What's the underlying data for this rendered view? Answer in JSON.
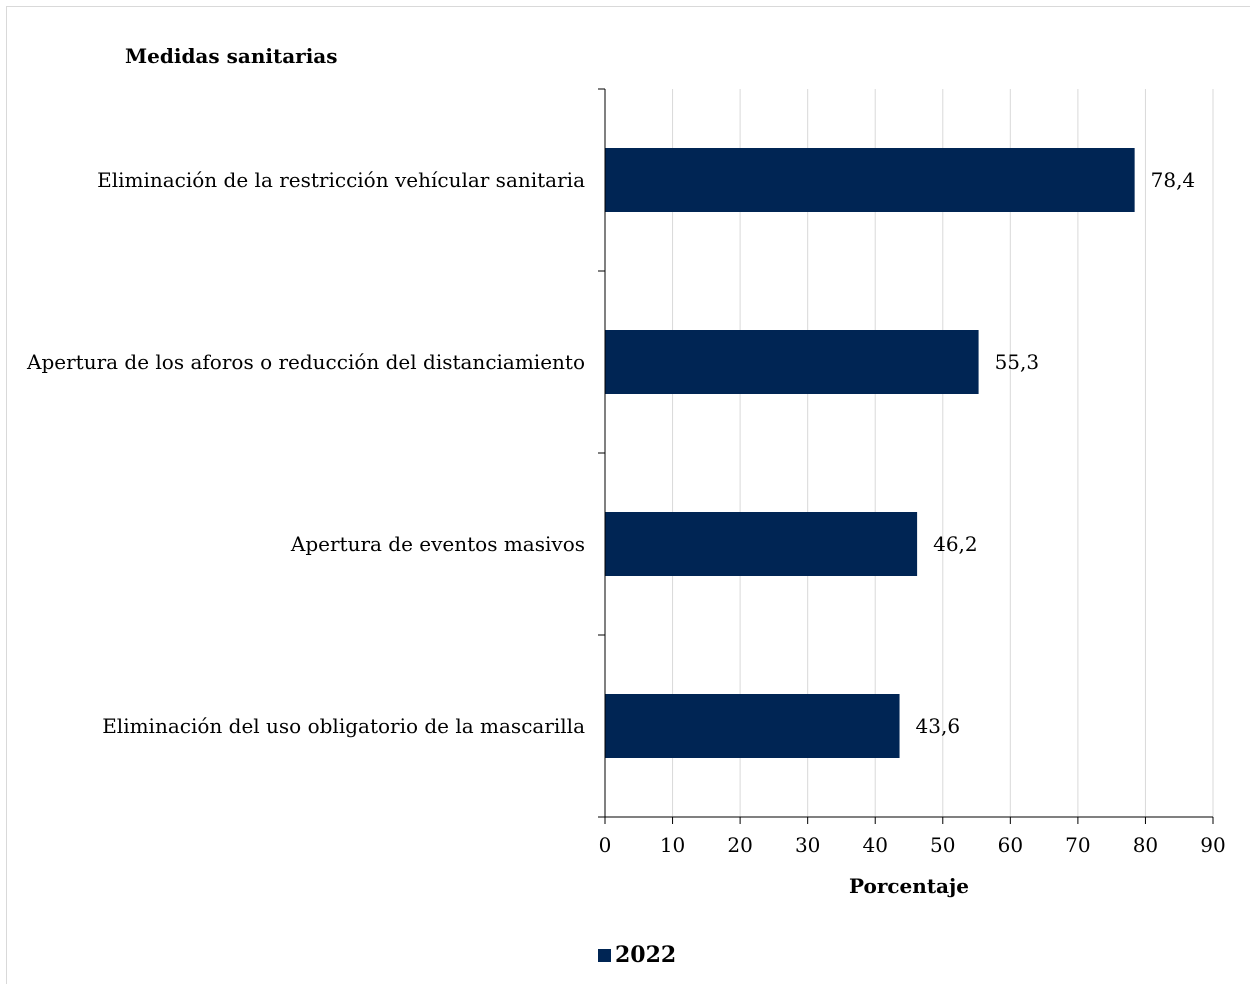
{
  "chart_data": {
    "type": "bar",
    "orientation": "horizontal",
    "ylabel": "Medidas sanitarias",
    "xlabel": "Porcentaje",
    "xlim": [
      0,
      90
    ],
    "xticks": [
      0,
      10,
      20,
      30,
      40,
      50,
      60,
      70,
      80,
      90
    ],
    "grid": true,
    "legend_position": "bottom",
    "categories": [
      "Eliminación de la restricción vehícular sanitaria",
      "Apertura de los aforos o reducción del distanciamiento",
      "Apertura de eventos masivos",
      "Eliminación del uso obligatorio de la mascarilla"
    ],
    "series": [
      {
        "name": "2022",
        "color": "#002554",
        "values": [
          78.4,
          55.3,
          46.2,
          43.6
        ],
        "data_labels": [
          "78,4",
          "55,3",
          "46,2",
          "43,6"
        ]
      }
    ]
  }
}
